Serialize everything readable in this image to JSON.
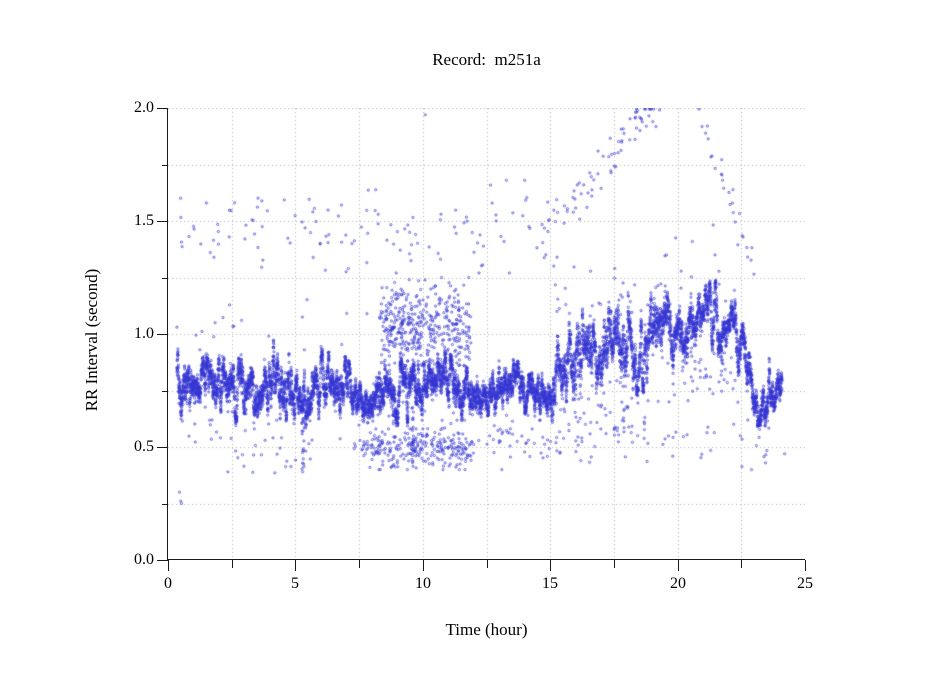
{
  "chart_data": {
    "type": "scatter",
    "title": "Record:  m251a",
    "xlabel": "Time (hour)",
    "ylabel": "RR Interval (second)",
    "xlim": [
      0,
      25
    ],
    "ylim": [
      0,
      2
    ],
    "x_major_ticks": [
      0,
      5,
      10,
      15,
      20,
      25
    ],
    "x_tick_labels": [
      "0",
      "5",
      "10",
      "15",
      "20",
      "25"
    ],
    "x_minor_step": 2.5,
    "y_major_ticks": [
      0,
      0.5,
      1,
      1.5,
      2
    ],
    "y_tick_labels": [
      "0.0",
      "0.5",
      "1.0",
      "1.5",
      "2.0"
    ],
    "y_minor_step": 0.25,
    "grid": {
      "style": "dotted",
      "color": "#b8b8b8",
      "x_step": 2.5,
      "y_step": 0.25
    },
    "marker": {
      "shape": "open-circle",
      "radius_px": 1.1,
      "color": "#3535d2"
    },
    "series": [
      {
        "name": "main-rr-band",
        "kind": "band",
        "t_start": 0.35,
        "t_end": 24.1,
        "points": 9000,
        "profile": [
          [
            0.35,
            0.85,
            0.12
          ],
          [
            0.7,
            0.79,
            0.09
          ],
          [
            1.2,
            0.76,
            0.08
          ],
          [
            2.0,
            0.76,
            0.08
          ],
          [
            2.6,
            0.79,
            0.09
          ],
          [
            3.2,
            0.75,
            0.08
          ],
          [
            3.8,
            0.78,
            0.09
          ],
          [
            4.4,
            0.8,
            0.09
          ],
          [
            5.0,
            0.77,
            0.08
          ],
          [
            5.3,
            0.72,
            0.1
          ],
          [
            5.7,
            0.75,
            0.07
          ],
          [
            6.3,
            0.79,
            0.08
          ],
          [
            6.8,
            0.76,
            0.08
          ],
          [
            7.3,
            0.73,
            0.07
          ],
          [
            8.0,
            0.73,
            0.07
          ],
          [
            8.7,
            0.74,
            0.08
          ],
          [
            9.4,
            0.74,
            0.08
          ],
          [
            10.0,
            0.76,
            0.08
          ],
          [
            10.6,
            0.77,
            0.08
          ],
          [
            11.2,
            0.78,
            0.08
          ],
          [
            11.8,
            0.78,
            0.07
          ],
          [
            12.4,
            0.76,
            0.07
          ],
          [
            13.0,
            0.77,
            0.07
          ],
          [
            13.6,
            0.79,
            0.07
          ],
          [
            14.2,
            0.77,
            0.06
          ],
          [
            14.7,
            0.71,
            0.06
          ],
          [
            15.1,
            0.79,
            0.1
          ],
          [
            15.6,
            0.85,
            0.12
          ],
          [
            16.2,
            0.87,
            0.12
          ],
          [
            16.8,
            0.9,
            0.12
          ],
          [
            17.4,
            0.92,
            0.12
          ],
          [
            18.0,
            0.95,
            0.12
          ],
          [
            18.6,
            0.97,
            0.12
          ],
          [
            19.2,
            1.0,
            0.11
          ],
          [
            19.8,
            1.03,
            0.1
          ],
          [
            20.4,
            1.05,
            0.1
          ],
          [
            21.0,
            1.06,
            0.09
          ],
          [
            21.6,
            1.06,
            0.09
          ],
          [
            22.1,
            1.02,
            0.09
          ],
          [
            22.35,
            0.95,
            0.1
          ],
          [
            22.7,
            0.82,
            0.1
          ],
          [
            23.0,
            0.72,
            0.08
          ],
          [
            23.3,
            0.69,
            0.07
          ],
          [
            23.6,
            0.75,
            0.07
          ],
          [
            23.9,
            0.74,
            0.06
          ],
          [
            24.1,
            0.71,
            0.06
          ]
        ],
        "down_tail_prob": 0.012,
        "down_tail_max": 0.18,
        "late_tail_t_range": [
          15.0,
          22.3
        ],
        "late_down_tail_prob": 0.03,
        "late_down_tail_max": 0.25,
        "late_up_tail_prob": 0.008,
        "late_up_tail_max": 0.13
      },
      {
        "name": "upper-scatter-first-half",
        "kind": "cloud",
        "t_range": [
          0.4,
          15.3
        ],
        "y_center": 1.46,
        "y_spread": 0.1,
        "y_range": [
          1.27,
          1.68
        ],
        "points": 125
      },
      {
        "name": "upper-cloud-mid-morning",
        "kind": "cloud",
        "t_range": [
          8.3,
          11.9
        ],
        "y_center": 1.03,
        "y_spread": 0.09,
        "y_range": [
          0.86,
          1.25
        ],
        "points": 430
      },
      {
        "name": "low-cloud-mid-morning",
        "kind": "cloud",
        "t_range": [
          7.6,
          12.0
        ],
        "y_center": 0.49,
        "y_spread": 0.045,
        "y_range": [
          0.4,
          0.58
        ],
        "points": 260
      },
      {
        "name": "rising-outlier-arc",
        "kind": "trend",
        "t_range": [
          14.8,
          19.0
        ],
        "y_start": 1.44,
        "y_end": 2.0,
        "y_spread": 0.05,
        "points": 60
      },
      {
        "name": "peak-outlier-cluster",
        "kind": "cloud",
        "t_range": [
          17.9,
          19.5
        ],
        "y_center": 1.96,
        "y_spread": 0.035,
        "y_range": [
          1.88,
          2.0
        ],
        "points": 14
      },
      {
        "name": "falling-outlier-arc",
        "kind": "trend",
        "t_range": [
          20.8,
          23.1
        ],
        "y_start": 1.98,
        "y_end": 1.25,
        "y_spread": 0.05,
        "points": 26
      },
      {
        "name": "mid-scatter-right",
        "kind": "cloud",
        "t_range": [
          19.5,
          23.2
        ],
        "y_center": 1.36,
        "y_spread": 0.08,
        "y_range": [
          1.22,
          1.52
        ],
        "points": 12
      },
      {
        "name": "upper-singles-right",
        "kind": "cloud",
        "t_range": [
          15.0,
          19.2
        ],
        "y_center": 1.2,
        "y_spread": 0.06,
        "y_range": [
          1.1,
          1.32
        ],
        "points": 18
      },
      {
        "name": "low-scatter-right",
        "kind": "cloud",
        "t_range": [
          12.5,
          23.6
        ],
        "y_center": 0.53,
        "y_spread": 0.06,
        "y_range": [
          0.4,
          0.64
        ],
        "points": 80
      },
      {
        "name": "low-scatter-left",
        "kind": "cloud",
        "t_range": [
          0.8,
          7.4
        ],
        "y_center": 0.47,
        "y_spread": 0.06,
        "y_range": [
          0.36,
          0.58
        ],
        "points": 22
      },
      {
        "name": "mid-singles-left",
        "kind": "cloud",
        "t_range": [
          0.4,
          8.2
        ],
        "y_center": 1.02,
        "y_spread": 0.06,
        "y_range": [
          0.93,
          1.22
        ],
        "points": 16
      },
      {
        "name": "pause-spike-5h",
        "kind": "column",
        "t": 5.3,
        "t_jitter": 0.05,
        "y_range": [
          0.35,
          0.7
        ],
        "points": 26
      },
      {
        "name": "pause-spike-9p6h",
        "kind": "column",
        "t": 9.6,
        "t_jitter": 0.04,
        "y_range": [
          0.42,
          0.68
        ],
        "points": 18
      },
      {
        "name": "isolated-points",
        "kind": "points",
        "xy": [
          [
            0.45,
            0.3
          ],
          [
            0.5,
            0.26
          ],
          [
            0.53,
            0.25
          ],
          [
            10.1,
            1.97
          ],
          [
            2.35,
            0.39
          ],
          [
            13.1,
            0.4
          ],
          [
            16.2,
            0.44
          ],
          [
            22.9,
            0.4
          ],
          [
            23.45,
            0.43
          ],
          [
            24.2,
            0.47
          ],
          [
            0.35,
            1.03
          ],
          [
            1.85,
            1.05
          ]
        ]
      }
    ]
  },
  "figure": {
    "background": "#ffffff",
    "axis_color": "#1a1a1a"
  }
}
